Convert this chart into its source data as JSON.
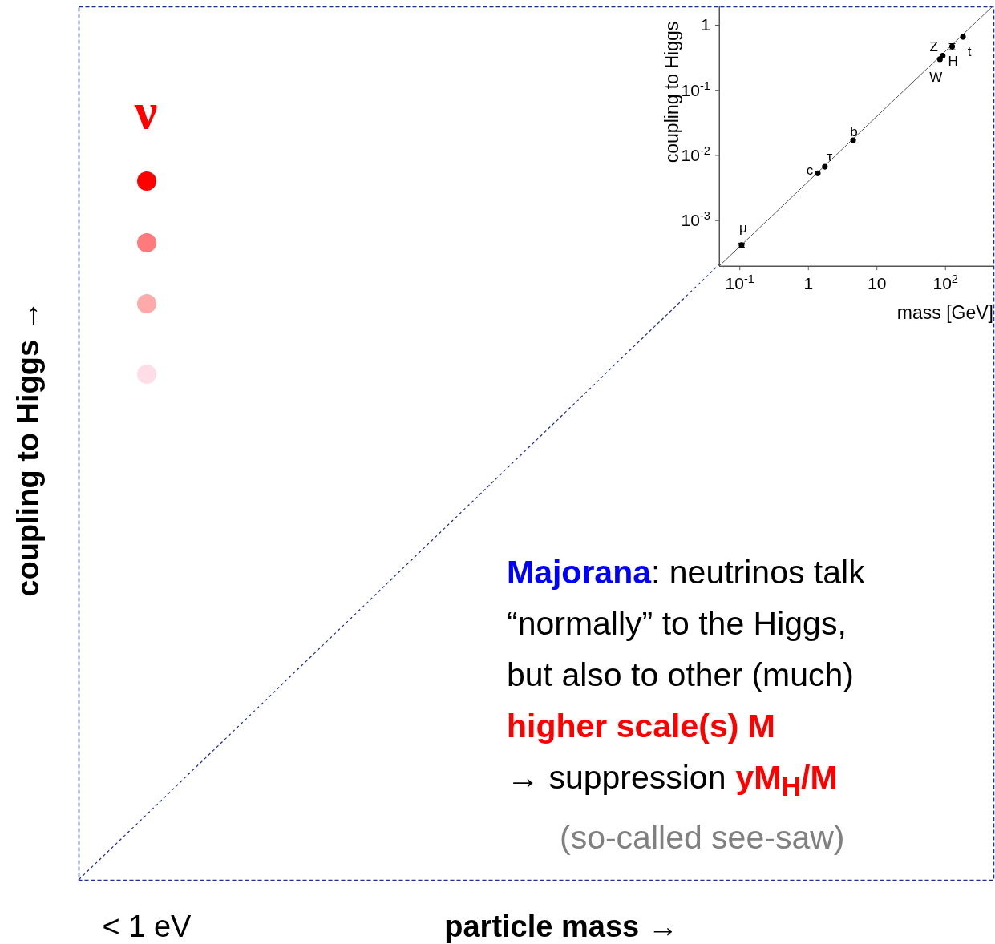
{
  "chart_data": [
    {
      "type": "other",
      "xlabel": "particle mass →",
      "ylabel": "coupling to Higgs →",
      "annotations": [
        "ν",
        "< 1 eV",
        "Majorana",
        ": neutrinos talk",
        "“normally” to the Higgs,",
        "but also to other (much)",
        "higher scale(s) M",
        "→ suppression",
        "yM$_{H}$/M",
        "(so-called see-saw)"
      ]
    },
    {
      "type": "scatter",
      "xlabel": "mass [GeV]",
      "ylabel": "coupling to Higgs",
      "log": "xy",
      "xlim": [
        0.05,
        500
      ],
      "ylim": [
        0.0002,
        2
      ],
      "xticks": [
        {
          "value": 0.1,
          "label": "10$^{-1}$"
        },
        1,
        10,
        {
          "value": 100,
          "label": "10$^{2}$"
        }
      ],
      "yticks": [
        {
          "value": 0.001,
          "label": "10$^{-3}$"
        },
        {
          "value": 0.01,
          "label": "10$^{-2}$"
        },
        {
          "value": 0.1,
          "label": "10$^{-1}$"
        },
        1
      ],
      "series": [
        {
          "marker": "circle",
          "color": "#000000",
          "x": [
            0.106,
            1.37,
            1.74,
            4.5,
            83,
            91,
            125,
            180
          ],
          "values": [
            0.00042,
            0.0053,
            0.0067,
            0.0171,
            0.3,
            0.34,
            0.47,
            0.66
          ],
          "errors": [
            3e-05,
            null,
            null,
            null,
            null,
            null,
            0.05,
            null
          ]
        },
        {
          "type": "line",
          "marker": "none",
          "color": "#555555",
          "x": [
            0.05,
            500
          ],
          "values": [
            0.0002,
            2
          ]
        }
      ],
      "annotations": [
        {
          "text": "μ",
          "x": 0.106,
          "y": 0.00042
        },
        {
          "text": "c",
          "x": 1.37,
          "y": 0.0053
        },
        {
          "text": "τ",
          "x": 1.74,
          "y": 0.0067
        },
        {
          "text": "b",
          "x": 4.5,
          "y": 0.0171
        },
        {
          "text": "W",
          "x": 83,
          "y": 0.3
        },
        {
          "text": "Z",
          "x": 91,
          "y": 0.34
        },
        {
          "text": "H",
          "x": 125,
          "y": 0.47
        },
        {
          "text": "t",
          "x": 180,
          "y": 0.66
        }
      ]
    }
  ]
}
